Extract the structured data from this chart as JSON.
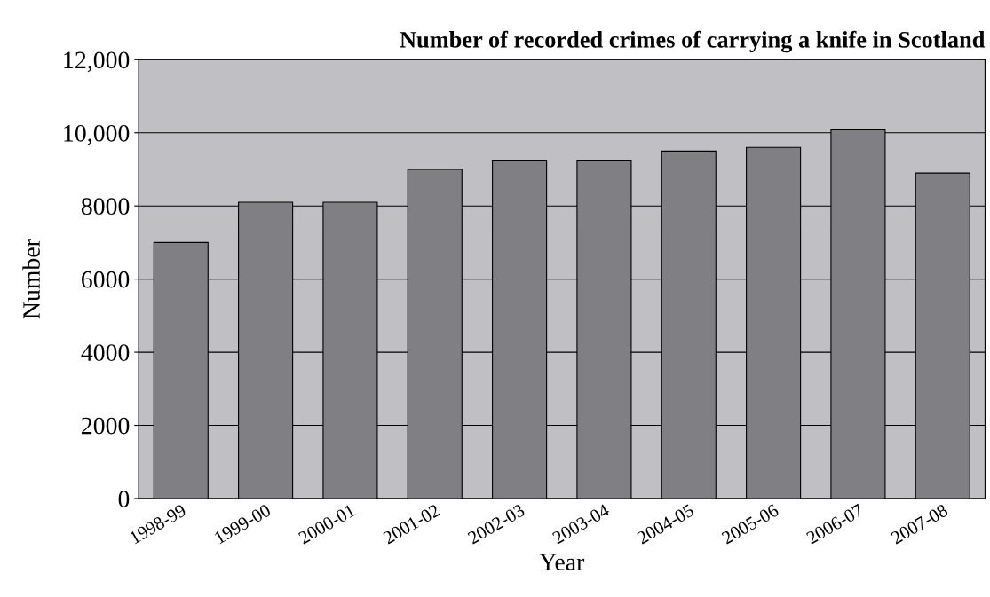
{
  "chart_data": {
    "type": "bar",
    "title": "Number of recorded crimes of carrying a knife in Scotland",
    "xlabel": "Year",
    "ylabel": "Number",
    "categories": [
      "1998-99",
      "1999-00",
      "2000-01",
      "2001-02",
      "2002-03",
      "2003-04",
      "2004-05",
      "2005-06",
      "2006-07",
      "2007-08"
    ],
    "values": [
      7000,
      8100,
      8100,
      9000,
      9250,
      9250,
      9500,
      9600,
      10100,
      8900
    ],
    "color": "#808084",
    "ylim": [
      0,
      12000
    ],
    "yticks": [
      0,
      2000,
      4000,
      6000,
      8000,
      {
        "value": 10000,
        "label": "10,000"
      },
      {
        "value": 12000,
        "label": "12,000"
      }
    ],
    "grid": "y"
  }
}
